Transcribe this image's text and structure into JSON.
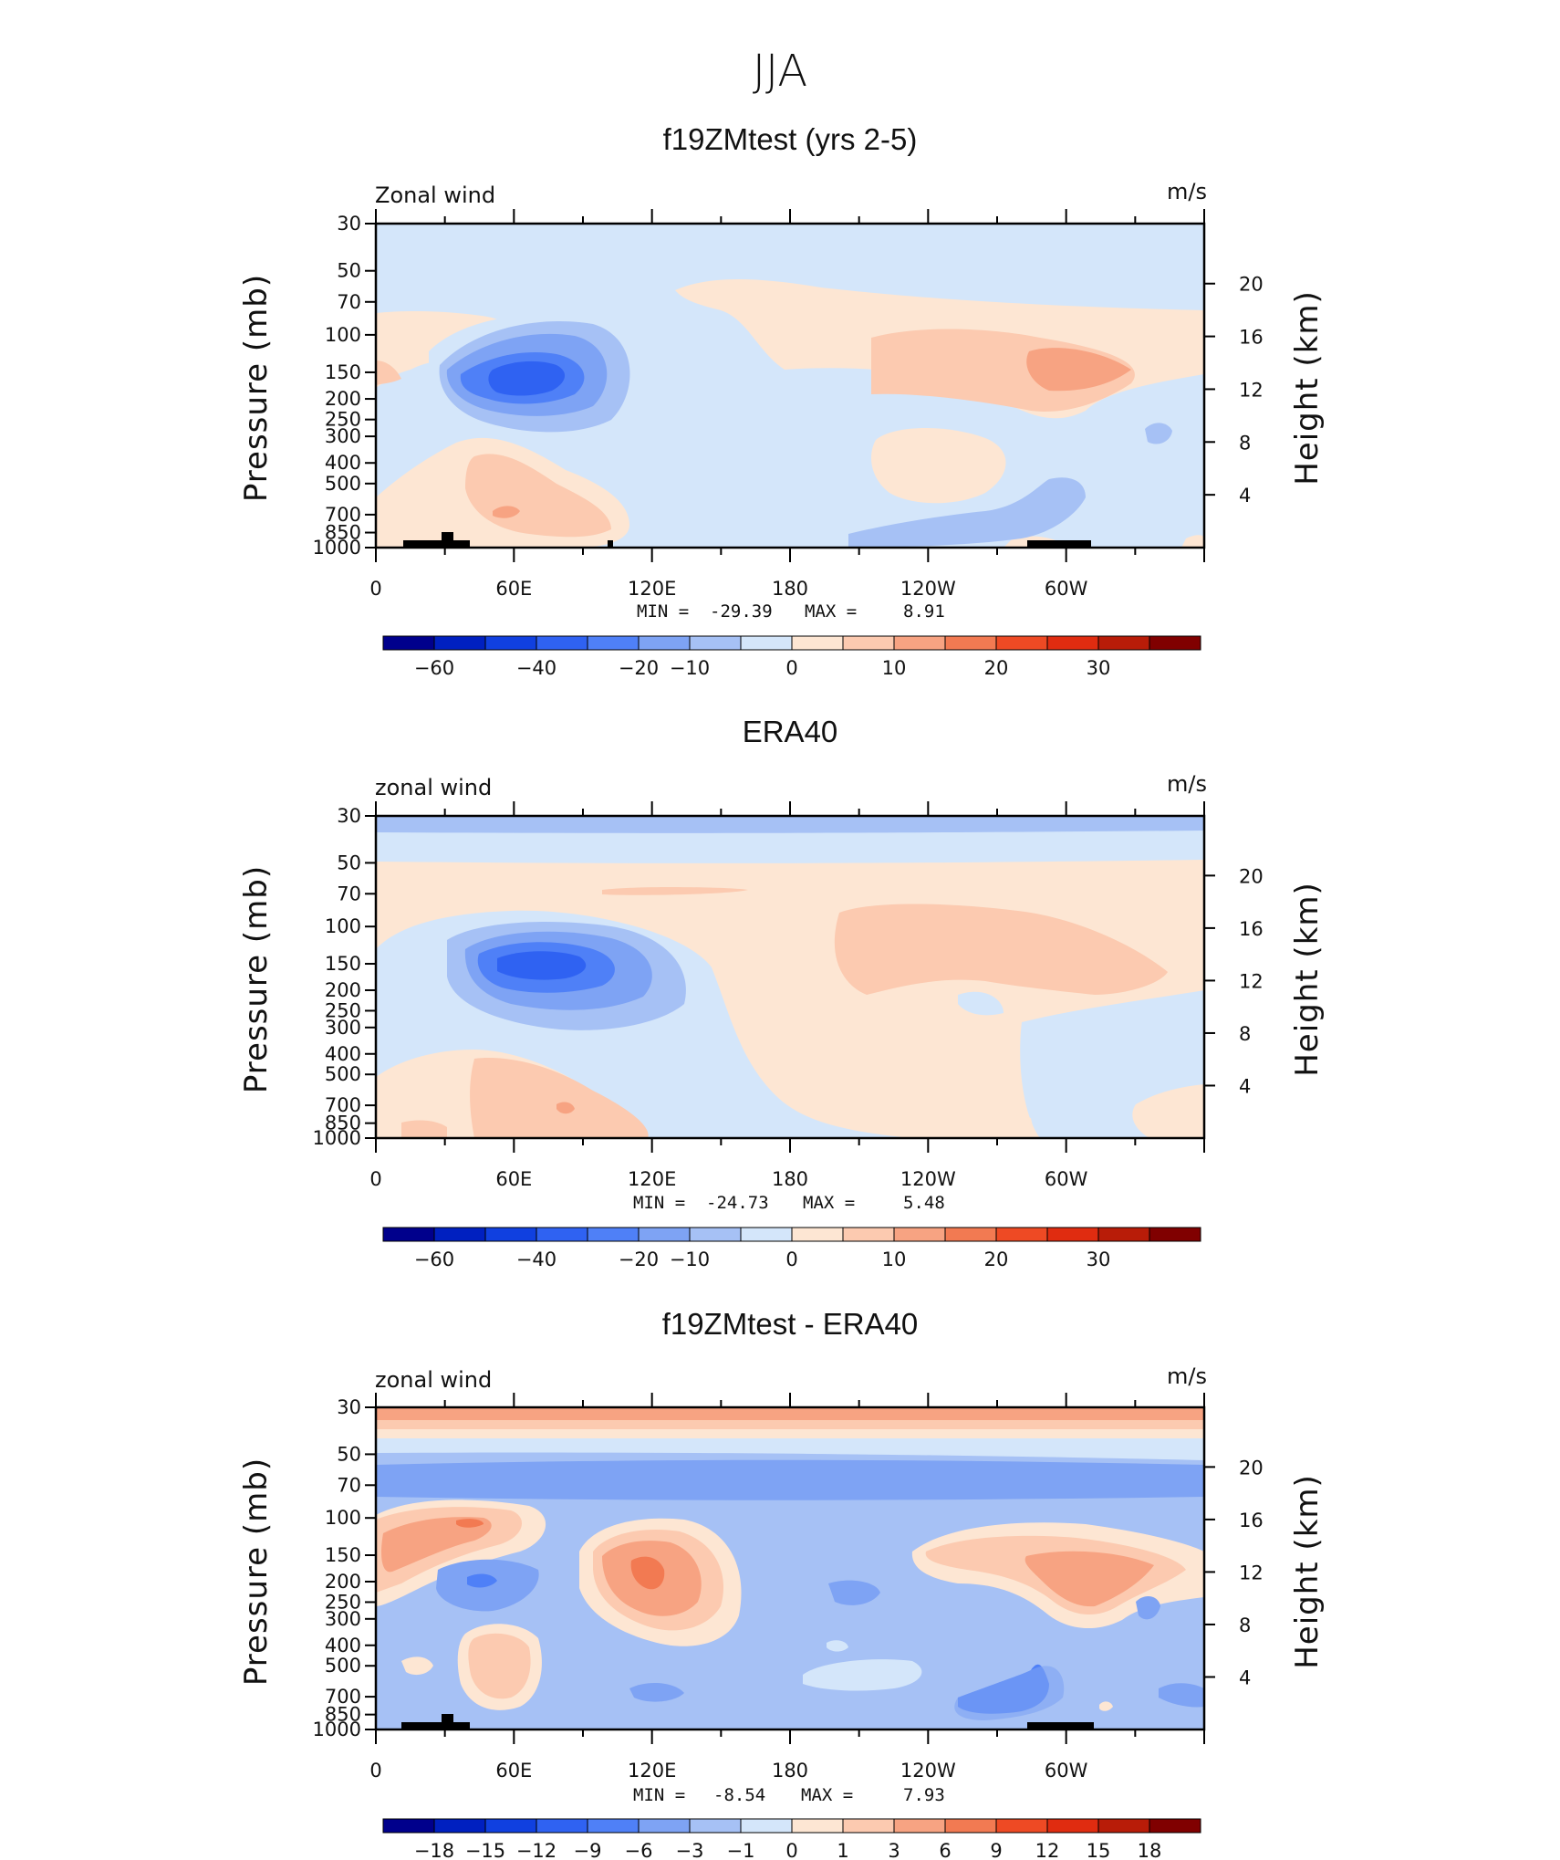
{
  "figure_title": "JJA",
  "colors": {
    "cmap": [
      "#00008c",
      "#0020c0",
      "#1040e0",
      "#2f62f2",
      "#4f80f7",
      "#7ea3f4",
      "#a6c1f5",
      "#d4e6fa",
      "#fde6d3",
      "#fccab0",
      "#f7a382",
      "#f27a52",
      "#ee4a24",
      "#e02c10",
      "#b81c08",
      "#800000"
    ],
    "land": "#000000"
  },
  "chart_data": [
    {
      "type": "heatmap",
      "title": "f19ZMtest (yrs 2-5)",
      "left_label": "Zonal wind",
      "right_label": "m/s",
      "ylabel": "Pressure (mb)",
      "ylabel2": "Height (km)",
      "x_ticks": [
        "0",
        "60E",
        "120E",
        "180",
        "120W",
        "60W"
      ],
      "y_ticks": [
        "30",
        "50",
        "70",
        "100",
        "150",
        "200",
        "250",
        "300",
        "400",
        "500",
        "700",
        "850",
        "1000"
      ],
      "y2_ticks": [
        "20",
        "16",
        "12",
        "8",
        "4"
      ],
      "stats": {
        "min_label": "MIN =",
        "min": "-29.39",
        "max_label": "MAX =",
        "max": "8.91"
      },
      "colorbar_labels": [
        "-60",
        "-40",
        "-20",
        "-10",
        "0",
        "10",
        "20",
        "30"
      ],
      "field": [
        [
          -5,
          -5,
          -5,
          -5,
          -5,
          -5,
          -5,
          -5,
          -5,
          -5,
          -5,
          -5,
          -5,
          -5,
          -5,
          -5,
          -5,
          -5,
          -5,
          -5,
          -5,
          -5,
          -5,
          -5
        ],
        [
          -5,
          -5,
          -5,
          -5,
          -5,
          -5,
          -5,
          -5,
          -5,
          -5,
          -5,
          -5,
          -5,
          -5,
          -5,
          -5,
          -5,
          -5,
          -5,
          -5,
          -5,
          -5,
          -5,
          -5
        ],
        [
          -5,
          -5,
          -5,
          -5,
          -5,
          -5,
          -5,
          -5,
          -5,
          -5,
          -5,
          -5,
          -5,
          -5,
          -5,
          -5,
          -5,
          -5,
          -5,
          -5,
          -5,
          -5,
          -5,
          -5
        ],
        [
          -5,
          -5,
          -5,
          -5,
          -5,
          -5,
          -5,
          -5,
          -5,
          -5,
          -5,
          -5,
          -5,
          -5,
          -5,
          -5,
          -5,
          -5,
          -5,
          -5,
          -5,
          -5,
          -5,
          -5
        ],
        [
          -5,
          -5,
          -5,
          -5,
          -5,
          -5,
          -5,
          -5,
          -5,
          -5,
          -5,
          -5,
          -5,
          -5,
          -5,
          -5,
          -5,
          -5,
          -5,
          -5,
          -5,
          -5,
          -5,
          -5
        ],
        [
          -5,
          -5,
          -5,
          -5,
          -5,
          -5,
          -5,
          -5,
          -5,
          -5,
          -5,
          -5,
          -5,
          -5,
          -5,
          -5,
          -5,
          -5,
          -5,
          -5,
          -5,
          -5,
          -5,
          -5
        ],
        [
          -5,
          -5,
          -5,
          -5,
          -5,
          -5,
          -5,
          -5,
          -5,
          -5,
          -5,
          -5,
          -5,
          -5,
          -5,
          -5,
          -5,
          -5,
          -5,
          -5,
          -5,
          -5,
          -5,
          -5
        ],
        [
          -5,
          -5,
          -5,
          -5,
          -5,
          -5,
          -5,
          -5,
          -5,
          -5,
          -5,
          -5,
          -5,
          -5,
          -5,
          -5,
          -5,
          -5,
          -5,
          -5,
          -5,
          -5,
          -5,
          -5
        ],
        [
          -5,
          -5,
          -5,
          -5,
          -5,
          -5,
          -5,
          -5,
          -5,
          -5,
          -5,
          -5,
          -5,
          -5,
          -5,
          -5,
          -5,
          -5,
          -5,
          -5,
          -5,
          -5,
          -5,
          -5
        ],
        [
          -5,
          -5,
          -5,
          -5,
          -5,
          -5,
          -5,
          -5,
          -5,
          -5,
          -5,
          -5,
          -5,
          -5,
          -5,
          -5,
          -5,
          -5,
          -5,
          -5,
          -5,
          -5,
          -5,
          -5
        ],
        [
          -5,
          -5,
          -5,
          -5,
          -5,
          -5,
          -5,
          -5,
          -5,
          -5,
          -5,
          -5,
          -5,
          -5,
          -5,
          -5,
          -5,
          -5,
          -5,
          -5,
          -5,
          -5,
          -5,
          -5
        ],
        [
          -5,
          -5,
          -5,
          -5,
          -5,
          -5,
          -5,
          -5,
          -5,
          -5,
          -5,
          -5,
          -5,
          -5,
          -5,
          -5,
          -5,
          -5,
          -5,
          -5,
          -5,
          -5,
          -5,
          -5
        ],
        [
          -5,
          -5,
          -5,
          -5,
          -5,
          -5,
          -5,
          -5,
          -5,
          -5,
          -5,
          -5,
          -5,
          -5,
          -5,
          -5,
          -5,
          -5,
          -5,
          -5,
          -5,
          -5,
          -5,
          -5
        ],
        [
          -5,
          -5,
          -5,
          -5,
          -5,
          -5,
          -5,
          -5,
          -5,
          -5,
          -5,
          -5,
          -5,
          -5,
          -5,
          -5,
          -5,
          -5,
          -5,
          -5,
          -5,
          -5,
          -5,
          -5
        ],
        [
          -5,
          -5,
          -5,
          -5,
          -5,
          -5,
          -5,
          -5,
          -5,
          -5,
          -5,
          -5,
          -5,
          -5,
          -5,
          -5,
          -5,
          -5,
          -5,
          -5,
          -5,
          -5,
          -5,
          -5
        ],
        [
          -5,
          -5,
          -5,
          -5,
          -5,
          -5,
          -5,
          -5,
          -5,
          -5,
          -5,
          -5,
          -5,
          -5,
          -5,
          -5,
          -5,
          -5,
          -5,
          -5,
          -5,
          -5,
          -5,
          -5
        ]
      ]
    },
    {
      "type": "heatmap",
      "title": "ERA40",
      "left_label": "zonal wind",
      "right_label": "m/s",
      "ylabel": "Pressure (mb)",
      "ylabel2": "Height (km)",
      "x_ticks": [
        "0",
        "60E",
        "120E",
        "180",
        "120W",
        "60W"
      ],
      "y_ticks": [
        "30",
        "50",
        "70",
        "100",
        "150",
        "200",
        "250",
        "300",
        "400",
        "500",
        "700",
        "850",
        "1000"
      ],
      "y2_ticks": [
        "20",
        "16",
        "12",
        "8",
        "4"
      ],
      "stats": {
        "min_label": "MIN =",
        "min": "-24.73",
        "max_label": "MAX =",
        "max": "5.48"
      },
      "colorbar_labels": [
        "-60",
        "-40",
        "-20",
        "-10",
        "0",
        "10",
        "20",
        "30"
      ]
    },
    {
      "type": "heatmap",
      "title": "f19ZMtest - ERA40",
      "left_label": "zonal wind",
      "right_label": "m/s",
      "ylabel": "Pressure (mb)",
      "ylabel2": "Height (km)",
      "x_ticks": [
        "0",
        "60E",
        "120E",
        "180",
        "120W",
        "60W"
      ],
      "y_ticks": [
        "30",
        "50",
        "70",
        "100",
        "150",
        "200",
        "250",
        "300",
        "400",
        "500",
        "700",
        "850",
        "1000"
      ],
      "y2_ticks": [
        "20",
        "16",
        "12",
        "8",
        "4"
      ],
      "stats": {
        "min_label": "MIN =",
        "min": "-8.54",
        "max_label": "MAX =",
        "max": "7.93"
      },
      "colorbar_labels": [
        "-18",
        "-15",
        "-12",
        "-9",
        "-6",
        "-3",
        "-1",
        "0",
        "1",
        "3",
        "6",
        "9",
        "12",
        "15",
        "18"
      ]
    }
  ]
}
